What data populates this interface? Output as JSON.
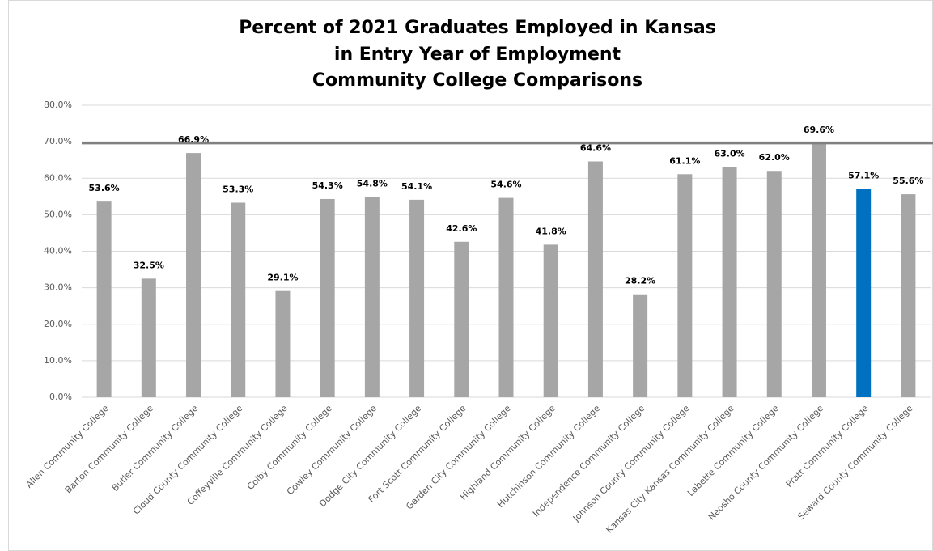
{
  "chart_data": {
    "type": "bar",
    "title": [
      "Percent of 2021 Graduates Employed in Kansas",
      "in Entry Year of Employment",
      "Community College Comparisons"
    ],
    "categories": [
      "Allen Community College",
      "Barton Community College",
      "Butler Community College",
      "Cloud County Community College",
      "Coffeyville Community College",
      "Colby Community College",
      "Cowley Community College",
      "Dodge City Community College",
      "Fort Scott Community College",
      "Garden City Community College",
      "Highland Community College",
      "Hutchinson Community College",
      "Independence Community College",
      "Johnson County Community College",
      "Kansas City Kansas Community College",
      "Labette Community College",
      "Neosho County Community College",
      "Pratt Community College",
      "Seward County Community College"
    ],
    "values": [
      53.6,
      32.5,
      66.9,
      53.3,
      29.1,
      54.3,
      54.8,
      54.1,
      42.6,
      54.6,
      41.8,
      64.6,
      28.2,
      61.1,
      63.0,
      62.0,
      69.6,
      57.1,
      55.6
    ],
    "value_labels": [
      "53.6%",
      "32.5%",
      "66.9%",
      "53.3%",
      "29.1%",
      "54.3%",
      "54.8%",
      "54.1%",
      "42.6%",
      "54.6%",
      "41.8%",
      "64.6%",
      "28.2%",
      "61.1%",
      "63.0%",
      "62.0%",
      "69.6%",
      "57.1%",
      "55.6%"
    ],
    "colors": [
      "#a6a6a6",
      "#a6a6a6",
      "#a6a6a6",
      "#a6a6a6",
      "#a6a6a6",
      "#a6a6a6",
      "#a6a6a6",
      "#a6a6a6",
      "#a6a6a6",
      "#a6a6a6",
      "#a6a6a6",
      "#a6a6a6",
      "#a6a6a6",
      "#a6a6a6",
      "#a6a6a6",
      "#a6a6a6",
      "#a6a6a6",
      "#0070c0",
      "#a6a6a6"
    ],
    "ylim": [
      0,
      80
    ],
    "yticks": [
      {
        "value": 0,
        "label": "0.0%"
      },
      {
        "value": 10,
        "label": "10.0%"
      },
      {
        "value": 20,
        "label": "20.0%"
      },
      {
        "value": 30,
        "label": "30.0%"
      },
      {
        "value": 40,
        "label": "40.0%"
      },
      {
        "value": 50,
        "label": "50.0%"
      },
      {
        "value": 60,
        "label": "60.0%"
      },
      {
        "value": 70,
        "label": "70.0%"
      },
      {
        "value": 80,
        "label": "80.0%"
      }
    ],
    "grid": true,
    "reference_line": 69.6,
    "reference_color": "#808080"
  }
}
